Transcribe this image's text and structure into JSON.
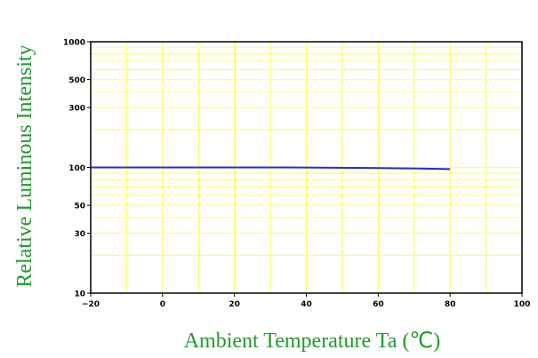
{
  "chart_data": {
    "type": "line",
    "title": "",
    "xlabel": "Ambient Temperature Ta (℃)",
    "ylabel": "Relative Luminous Intensity",
    "x_ticks": [
      -20,
      0,
      20,
      40,
      60,
      80,
      100
    ],
    "y_ticks": [
      10,
      30,
      50,
      100,
      300,
      500,
      1000
    ],
    "y_minor_grid": [
      20,
      40,
      60,
      70,
      80,
      90,
      200,
      400,
      600,
      700,
      800,
      900
    ],
    "xlim": [
      -20,
      100
    ],
    "ylim": [
      10,
      1000
    ],
    "y_scale": "log",
    "grid": true,
    "colors": {
      "grid": "#ffff66",
      "line": "#2a2ad8",
      "axis_title": "#1f9a2a",
      "frame": "#000000"
    },
    "series": [
      {
        "x": [
          -20,
          35,
          58,
          72,
          80
        ],
        "y": [
          100,
          100,
          99,
          98,
          97
        ]
      }
    ]
  }
}
